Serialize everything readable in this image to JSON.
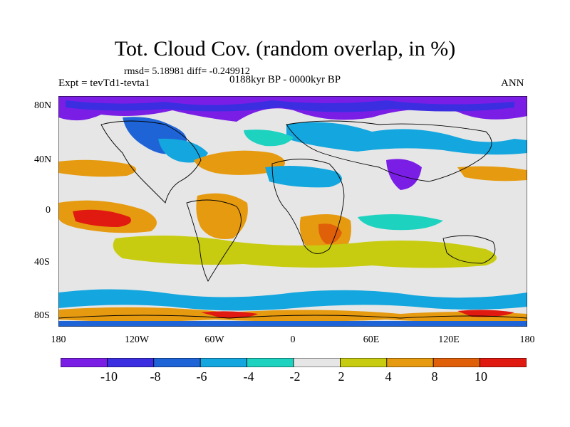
{
  "header": {
    "title": "Tot. Cloud Cov. (random overlap, in %)",
    "stats": "rmsd= 5.18981 diff= -0.249912",
    "experiment": "Expt = tevTd1-tevta1",
    "period": "0188kyr BP - 0000kyr BP",
    "season": "ANN"
  },
  "map": {
    "lat_labels": [
      "80N",
      "40N",
      "0",
      "40S",
      "80S"
    ],
    "lon_labels": [
      "180",
      "120W",
      "60W",
      "0",
      "60E",
      "120E",
      "180"
    ]
  },
  "colorbar": {
    "labels": [
      "-10",
      "-8",
      "-6",
      "-4",
      "-2",
      "2",
      "4",
      "8",
      "10"
    ],
    "colors": [
      "#7a1ee6",
      "#3a2ee0",
      "#1f64d6",
      "#14a6de",
      "#1ed2c0",
      "#e6e6e6",
      "#c8cc10",
      "#e69a10",
      "#e0600a",
      "#e01a10"
    ]
  }
}
